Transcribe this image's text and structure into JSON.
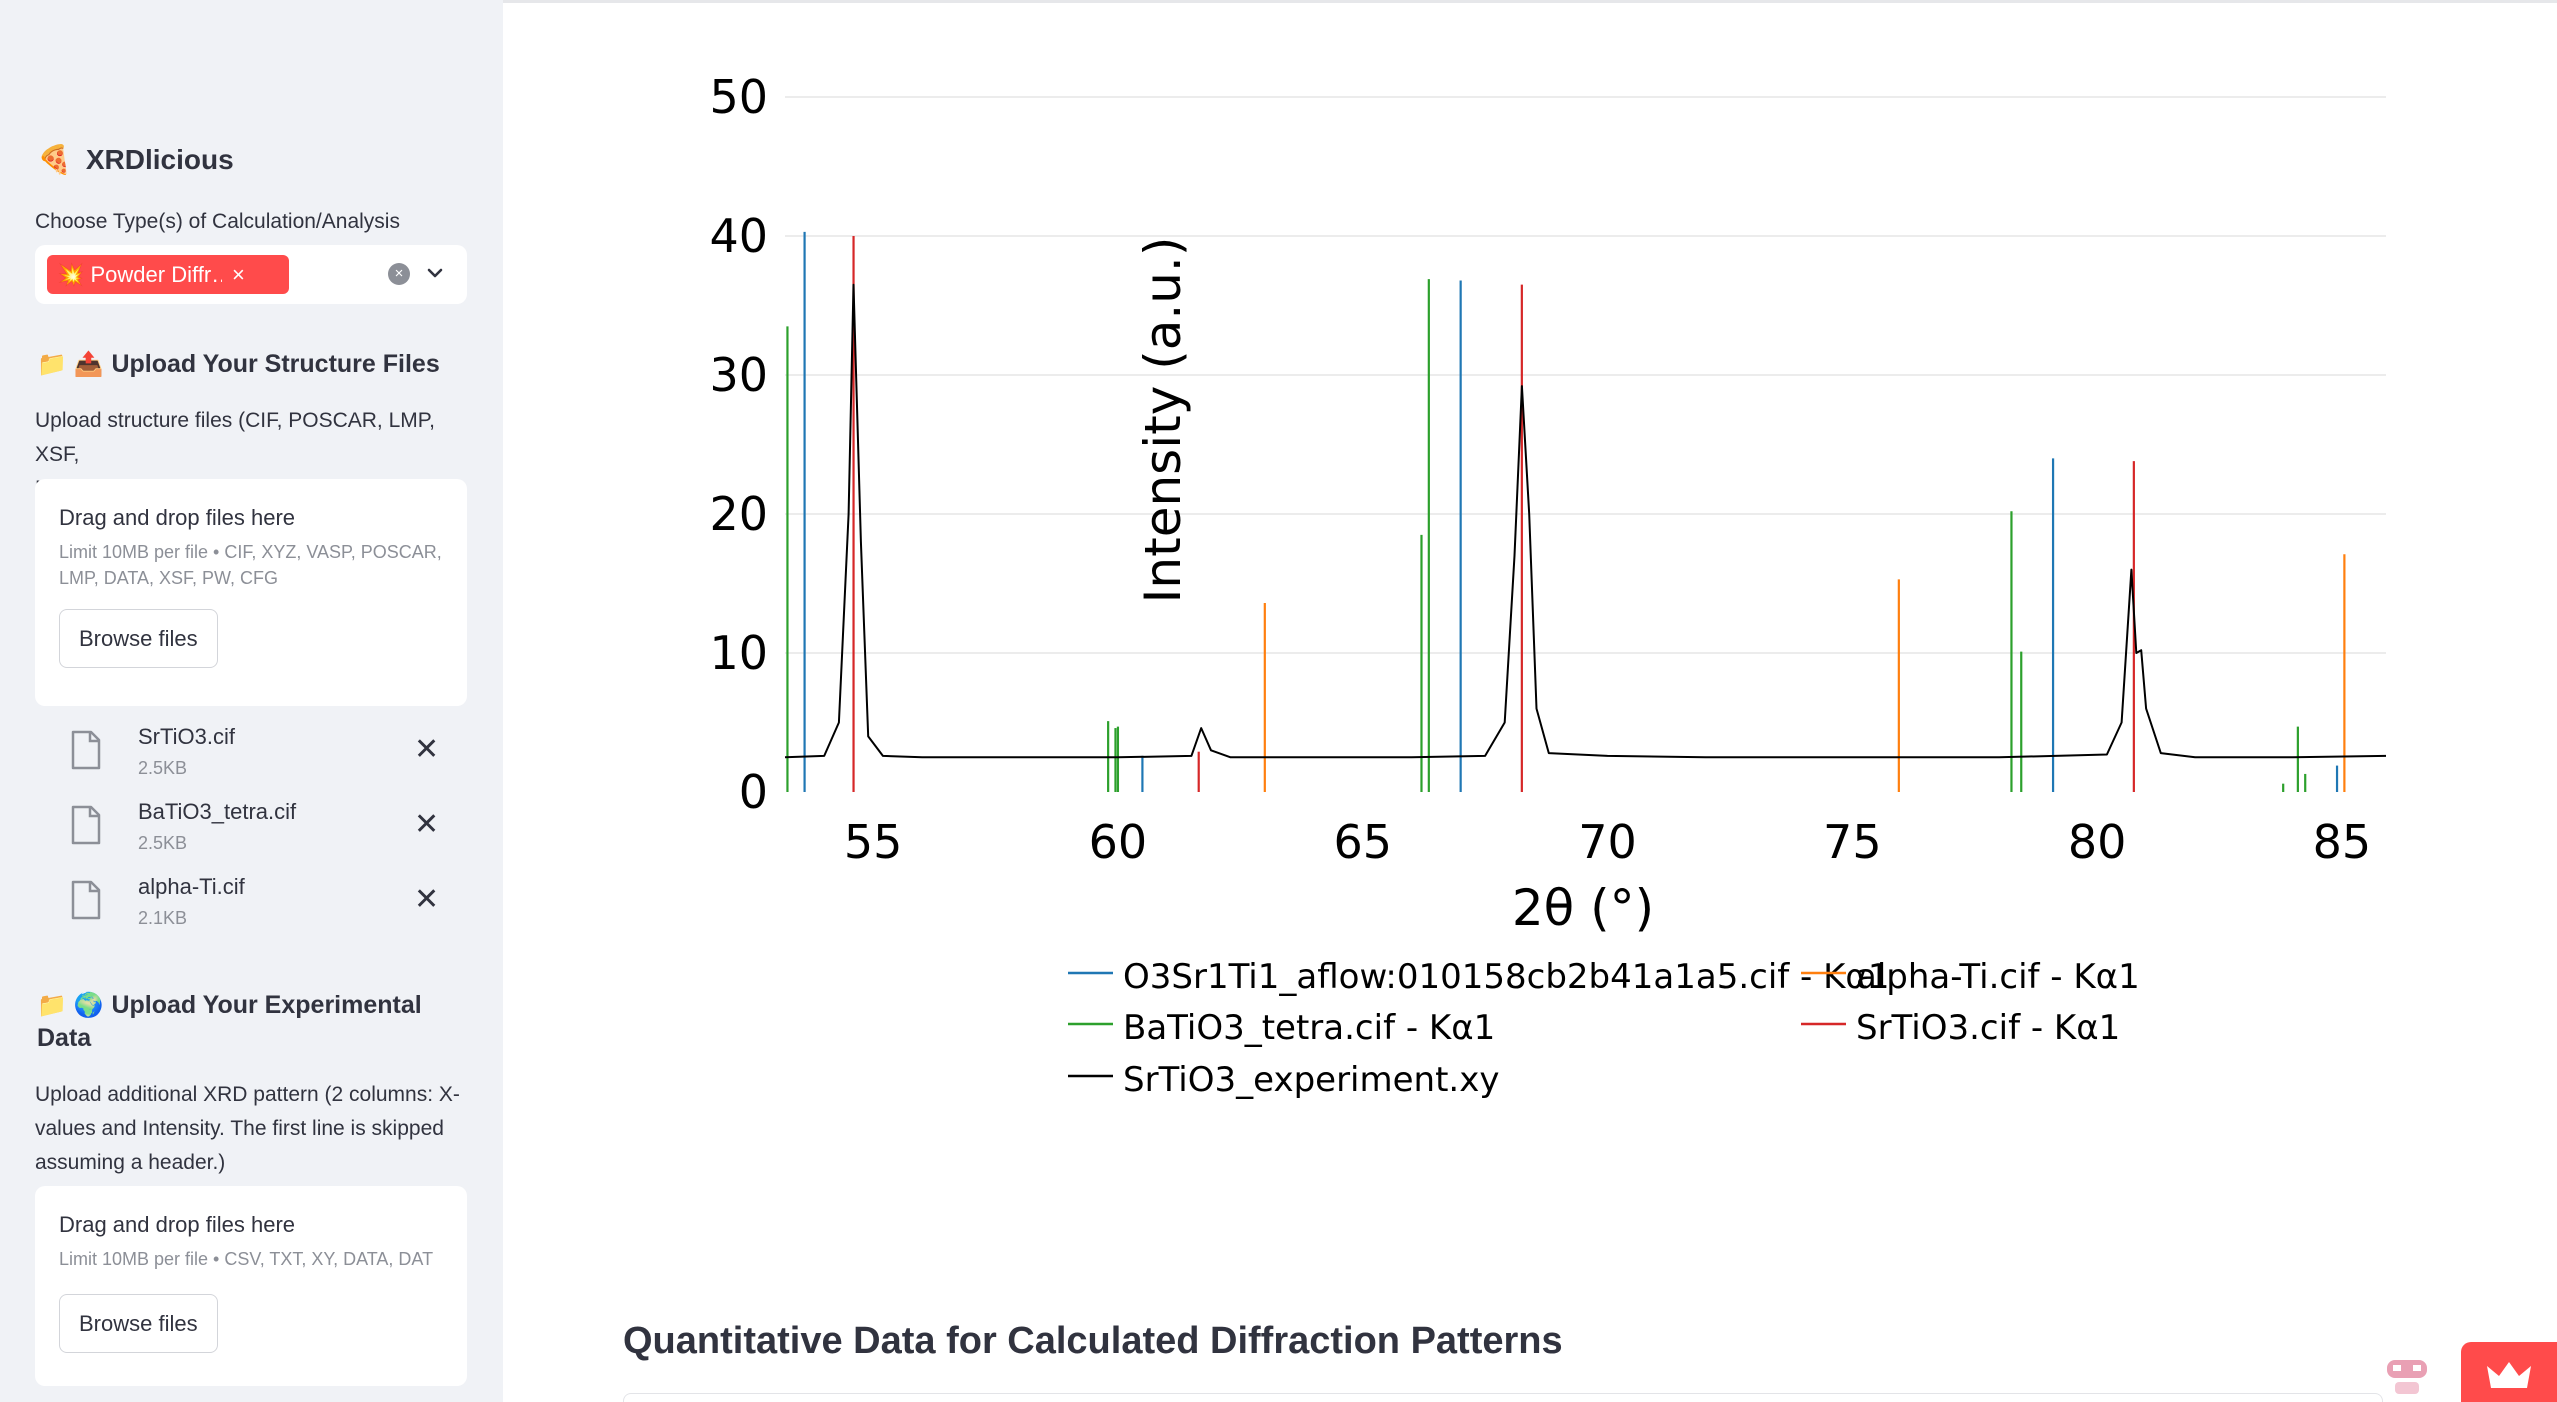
{
  "sidebar": {
    "app_title": "XRDlicious",
    "app_emoji": "🍕",
    "calc_label": "Choose Type(s) of Calculation/Analysis",
    "calc_chip": "💥 Powder Diffr…",
    "structure_section": {
      "icons": "📁 📤",
      "title": "Upload Your Structure Files",
      "help_line1": "Upload structure files (CIF, POSCAR, LMP, XSF,",
      "help_line2": "PW, CFG, XYZ (with cell)):",
      "dropzone_title": "Drag and drop files here",
      "limit_line1": "Limit 10MB per file • CIF, XYZ, VASP, POSCAR,",
      "limit_line2": "LMP, DATA, XSF, PW, CFG",
      "browse_label": "Browse files",
      "files": [
        {
          "name": "SrTiO3.cif",
          "size": "2.5KB"
        },
        {
          "name": "BaTiO3_tetra.cif",
          "size": "2.5KB"
        },
        {
          "name": "alpha-Ti.cif",
          "size": "2.1KB"
        }
      ]
    },
    "experimental_section": {
      "icons": "📁 🌍",
      "title_line1": "Upload Your Experimental",
      "title_line2": "Data",
      "help_line1": "Upload additional XRD pattern (2 columns: X-",
      "help_line2": "values and Intensity. The first line is skipped",
      "help_line3": "assuming a header.)",
      "dropzone_title": "Drag and drop files here",
      "limit_line1": "Limit 10MB per file • CSV, TXT, XY, DATA, DAT",
      "browse_label": "Browse files"
    }
  },
  "main": {
    "quant_title": "Quantitative Data for Calculated Diffraction Patterns"
  },
  "chart_data": {
    "type": "line",
    "xlabel": "2θ (°)",
    "ylabel": "Intensity (a.u.)",
    "xlim": [
      53.2,
      85.9
    ],
    "ylim": [
      0,
      50
    ],
    "x_ticks": [
      55,
      60,
      65,
      70,
      75,
      80,
      85
    ],
    "y_ticks": [
      0,
      10,
      20,
      30,
      40,
      50
    ],
    "grid": "horizontal",
    "legend_position": "bottom",
    "series": [
      {
        "name": "O3Sr1Ti1_aflow:010158cb2b41a1a5.cif - Kα1",
        "color": "#1f77b4",
        "style": "sticks",
        "points": [
          [
            53.6,
            40.3
          ],
          [
            60.5,
            2.6
          ],
          [
            67.0,
            36.8
          ],
          [
            79.1,
            24.0
          ],
          [
            84.9,
            1.9
          ]
        ]
      },
      {
        "name": "alpha-Ti.cif - Kα1",
        "color": "#ff7f0e",
        "style": "sticks",
        "points": [
          [
            63.0,
            13.6
          ],
          [
            75.95,
            15.3
          ],
          [
            85.05,
            17.1
          ]
        ]
      },
      {
        "name": "BaTiO3_tetra.cif - Kα1",
        "color": "#2ca02c",
        "style": "sticks",
        "points": [
          [
            53.25,
            33.5
          ],
          [
            59.8,
            5.1
          ],
          [
            59.95,
            4.6
          ],
          [
            60.0,
            4.7
          ],
          [
            66.2,
            18.5
          ],
          [
            66.35,
            36.9
          ],
          [
            78.25,
            20.2
          ],
          [
            78.45,
            10.1
          ],
          [
            83.8,
            0.6
          ],
          [
            84.1,
            4.7
          ],
          [
            84.25,
            1.3
          ]
        ]
      },
      {
        "name": "SrTiO3.cif - Kα1",
        "color": "#d62728",
        "style": "sticks",
        "points": [
          [
            54.6,
            40.0
          ],
          [
            61.65,
            2.9
          ],
          [
            68.25,
            36.5
          ],
          [
            80.75,
            23.8
          ]
        ]
      },
      {
        "name": "SrTiO3_experiment.xy",
        "color": "#000000",
        "style": "line",
        "points": [
          [
            53.2,
            2.5
          ],
          [
            54.0,
            2.6
          ],
          [
            54.3,
            5.0
          ],
          [
            54.5,
            20.0
          ],
          [
            54.6,
            36.5
          ],
          [
            54.75,
            18.0
          ],
          [
            54.9,
            4.0
          ],
          [
            55.2,
            2.6
          ],
          [
            56.0,
            2.5
          ],
          [
            58.0,
            2.5
          ],
          [
            60.0,
            2.5
          ],
          [
            61.5,
            2.6
          ],
          [
            61.7,
            4.6
          ],
          [
            61.9,
            3.0
          ],
          [
            62.3,
            2.5
          ],
          [
            64.0,
            2.5
          ],
          [
            66.0,
            2.5
          ],
          [
            67.5,
            2.6
          ],
          [
            67.9,
            5.0
          ],
          [
            68.1,
            17.0
          ],
          [
            68.25,
            29.2
          ],
          [
            68.4,
            20.0
          ],
          [
            68.55,
            6.0
          ],
          [
            68.8,
            2.8
          ],
          [
            70.0,
            2.6
          ],
          [
            72.0,
            2.5
          ],
          [
            75.0,
            2.5
          ],
          [
            78.0,
            2.5
          ],
          [
            80.2,
            2.7
          ],
          [
            80.5,
            5.0
          ],
          [
            80.7,
            16.0
          ],
          [
            80.8,
            10.0
          ],
          [
            80.9,
            10.2
          ],
          [
            81.0,
            6.0
          ],
          [
            81.3,
            2.8
          ],
          [
            82.0,
            2.5
          ],
          [
            84.0,
            2.5
          ],
          [
            85.9,
            2.6
          ]
        ]
      }
    ]
  }
}
